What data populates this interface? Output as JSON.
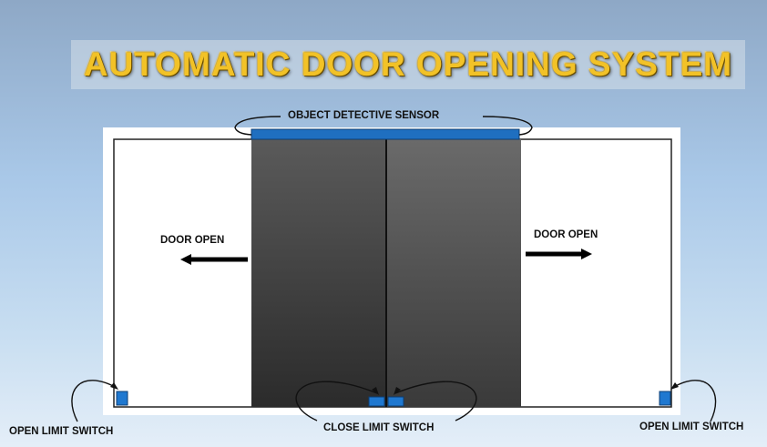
{
  "title": "AUTOMATIC DOOR OPENING SYSTEM",
  "labels": {
    "sensor": "OBJECT DETECTIVE SENSOR",
    "door_open_left": "DOOR OPEN",
    "door_open_right": "DOOR OPEN",
    "open_limit_left": "OPEN LIMIT SWITCH",
    "open_limit_right": "OPEN LIMIT SWITCH",
    "close_limit": "CLOSE LIMIT SWITCH"
  },
  "colors": {
    "title": "#f2c227",
    "sensor": "#1f6fc0",
    "switch": "#1f78d0",
    "door_top": "#525252",
    "door_bottom": "#2a2a2a",
    "frame": "#ffffff"
  }
}
